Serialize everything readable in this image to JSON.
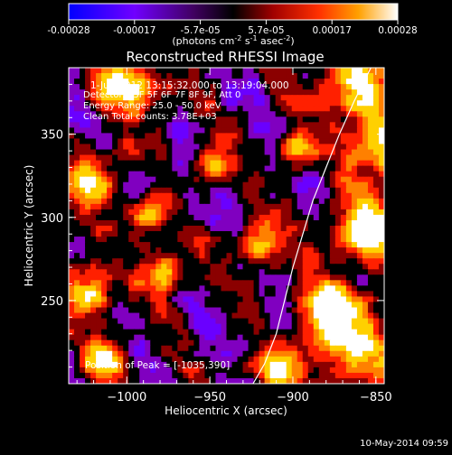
{
  "colorbar": {
    "ticks": [
      "-0.00028",
      "-0.00017",
      "-5.7e-05",
      "5.7e-05",
      "0.00017",
      "0.00028"
    ],
    "unit_label": "(photons cm",
    "unit_sup1": "-2",
    "unit_mid": " s",
    "unit_sup2": "-1",
    "unit_tail": " asec",
    "unit_sup3": "-2",
    "unit_close": ")"
  },
  "plot": {
    "title": "Reconstructed RHESSI Image",
    "info_lines": [
      "1-Jun-2012 13:15:32.000 to 13:19:04.000",
      "Detectors: 3F 5F 6F 7F 8F 9F, Att 0",
      "Energy Range: 25.0 - 50.0 keV",
      "Clean     Total counts: 3.78E+03"
    ],
    "peak_text": "Position of Peak = [-1035,390]",
    "footer_date": "10-May-2014 09:59"
  },
  "chart_data": {
    "type": "heatmap",
    "title": "Reconstructed RHESSI Image",
    "xlabel": "Heliocentric X (arcsec)",
    "ylabel": "Heliocentric Y (arcsec)",
    "xlim": [
      -1035,
      -845
    ],
    "ylim": [
      200,
      390
    ],
    "x_ticks": [
      -1000,
      -950,
      -900,
      -850
    ],
    "y_ticks": [
      250,
      300,
      350
    ],
    "x_tick_labels": [
      "−1000",
      "−950",
      "−900",
      "−850"
    ],
    "y_tick_labels": [
      "250",
      "300",
      "350"
    ],
    "color_range": [
      -0.00028,
      0.00028
    ],
    "colormap": [
      "#0000ff",
      "#6a00ff",
      "#8000c0",
      "#000000",
      "#8b0000",
      "#ff2000",
      "#ff8000",
      "#ffd000",
      "#ffffff"
    ],
    "limb_points": [
      [
        -924,
        200
      ],
      [
        -917,
        212
      ],
      [
        -910,
        230
      ],
      [
        -905,
        250
      ],
      [
        -900,
        270
      ],
      [
        -894,
        290
      ],
      [
        -888,
        310
      ],
      [
        -880,
        330
      ],
      [
        -872,
        350
      ],
      [
        -863,
        370
      ],
      [
        -853,
        390
      ]
    ]
  }
}
